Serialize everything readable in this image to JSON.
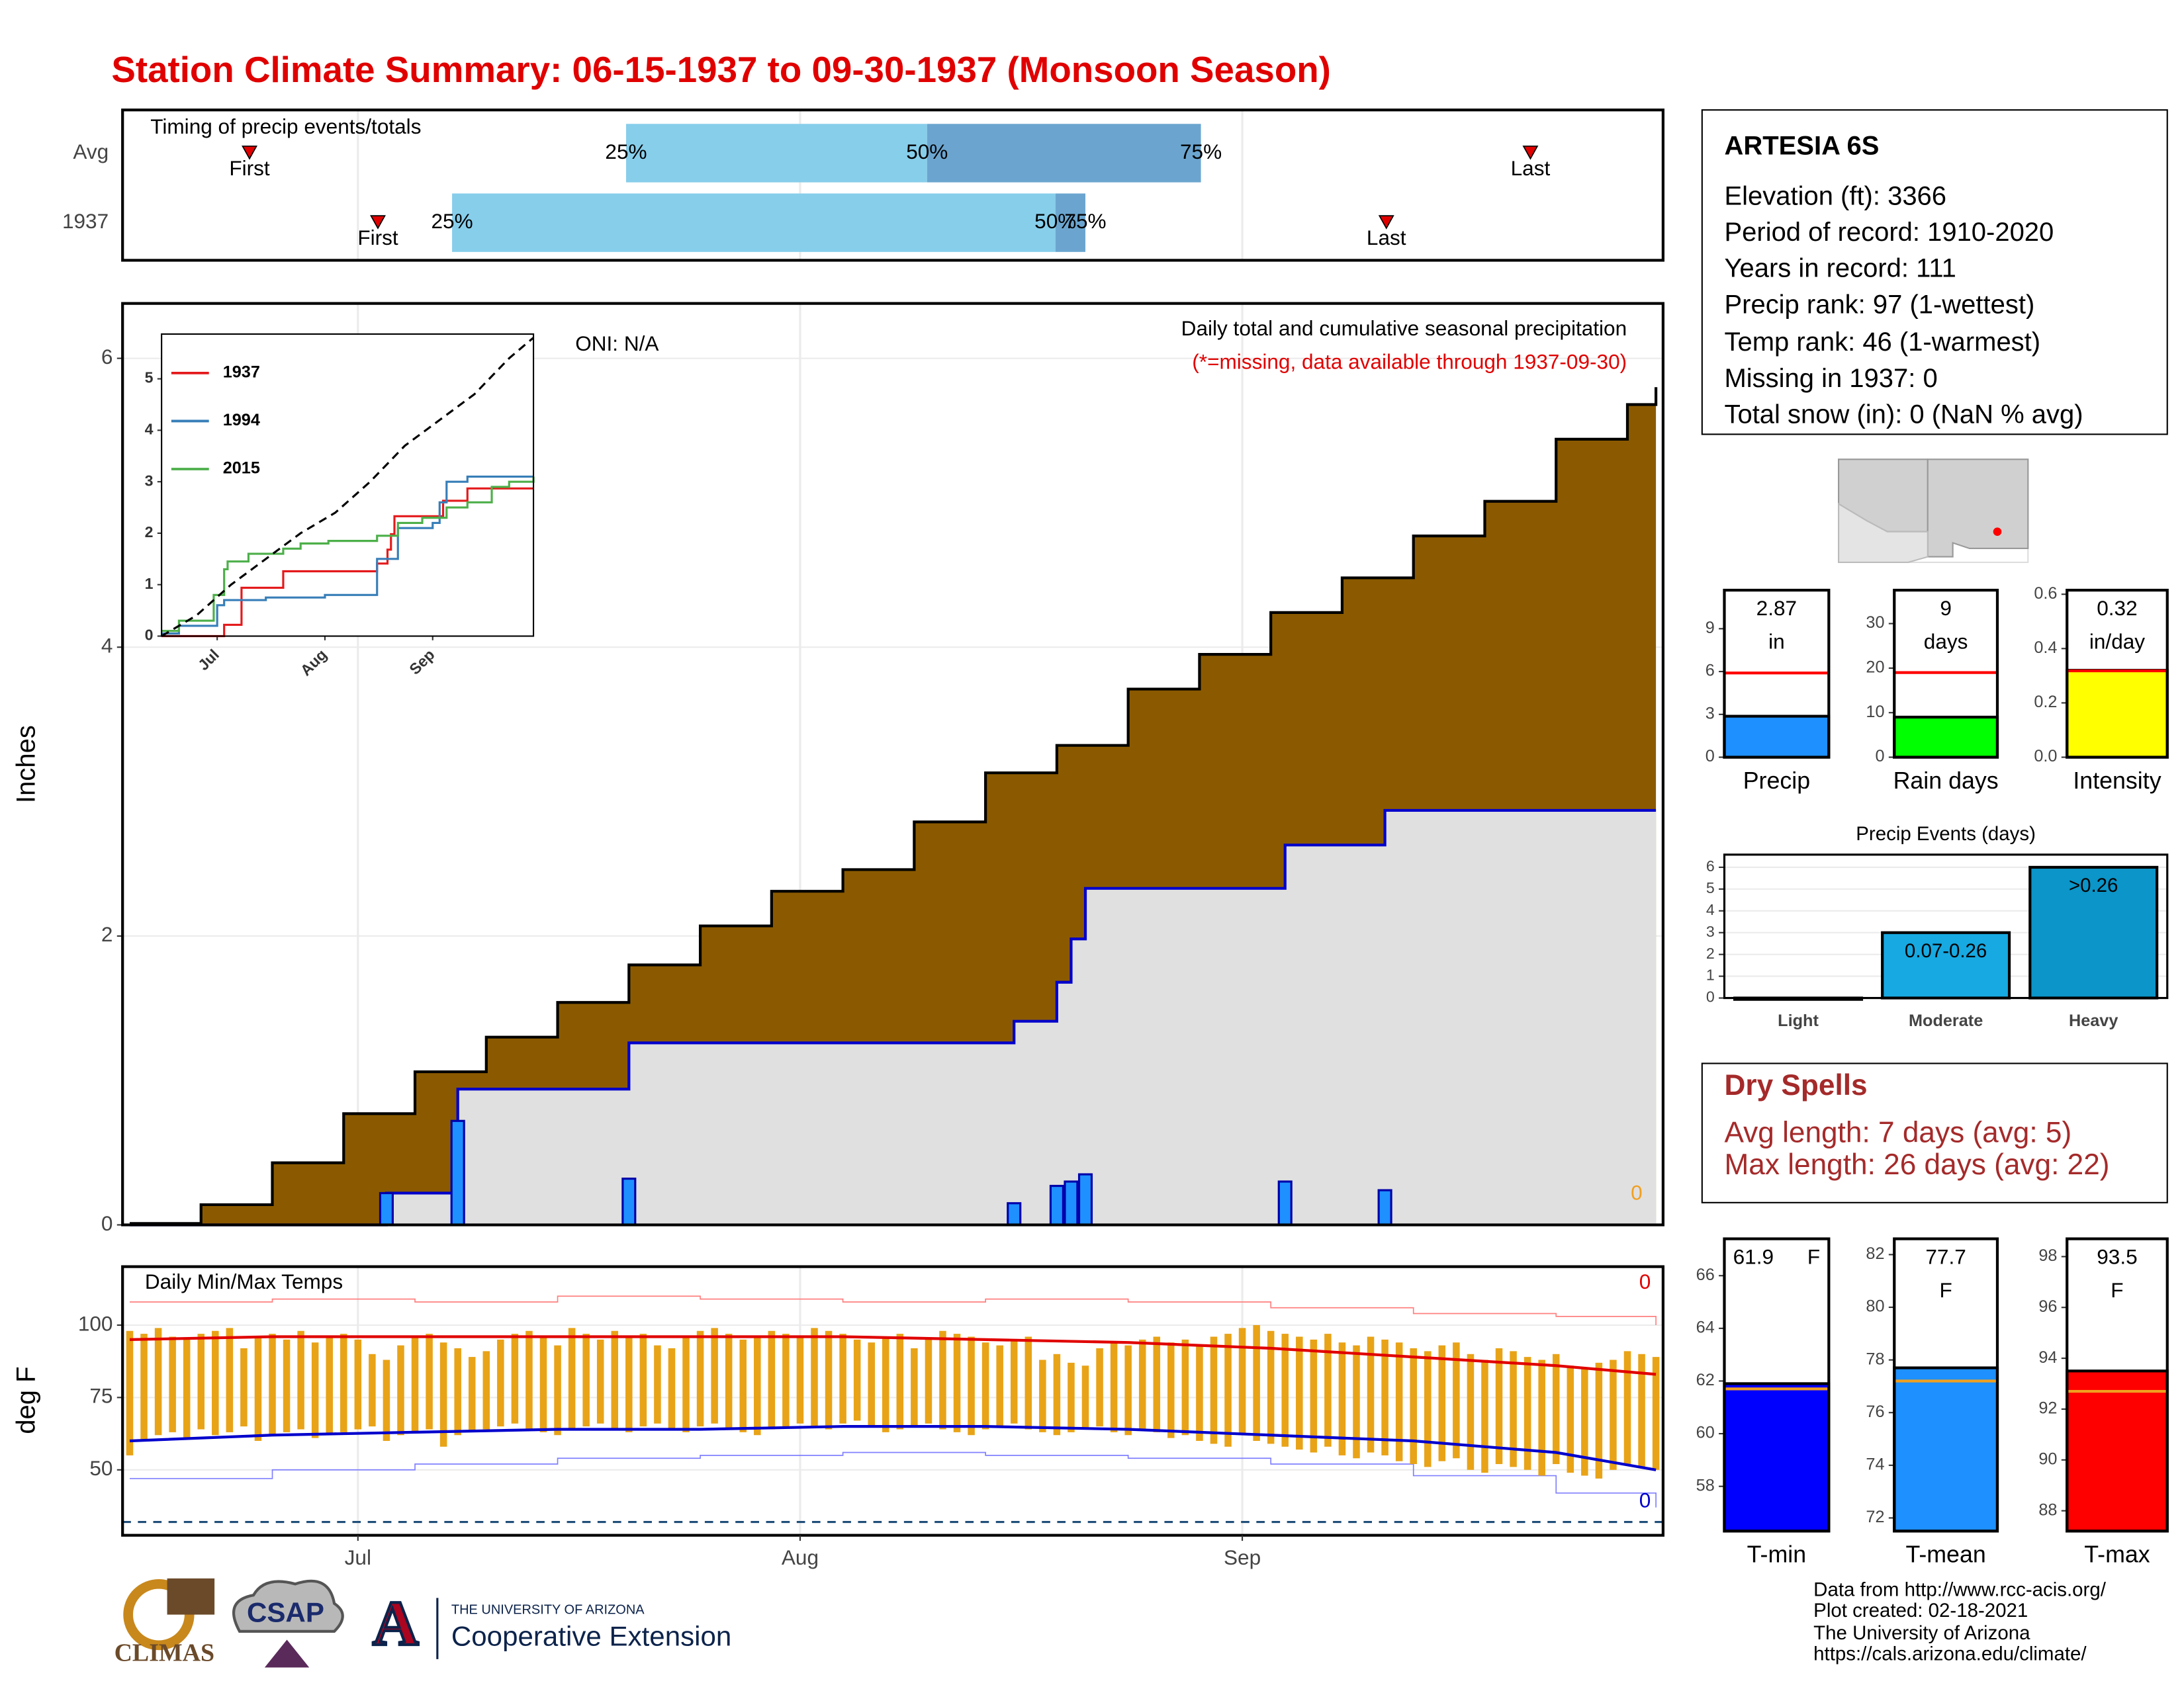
{
  "title": "Station Climate Summary: 06-15-1937 to 09-30-1937 (Monsoon Season)",
  "station": {
    "name": "ARTESIA 6S",
    "lines": [
      "Elevation (ft): 3366",
      "Period of record: 1910-2020",
      "Years in record: 111",
      "Precip rank: 97 (1-wettest)",
      "Temp rank: 46 (1-warmest)",
      "Missing in 1937: 0",
      "Total snow (in): 0 (NaN % avg)"
    ]
  },
  "dry_spells": {
    "title": "Dry Spells",
    "lines": [
      "Avg length: 7 days (avg: 5)",
      "Max length: 26 days (avg: 22)"
    ]
  },
  "logos": {
    "climas": "CLIMAS",
    "csap": "CSAP",
    "ua": "A",
    "ua_name": "THE UNIVERSITY OF ARIZONA",
    "extension": "Cooperative Extension"
  },
  "credits": [
    "Data from http://www.rcc-acis.org/",
    "Plot created: 02-18-2021",
    "The University of Arizona",
    "https://cals.arizona.edu/climate/"
  ],
  "chart_data": [
    {
      "type": "timing",
      "title": "Timing of precip events/totals",
      "categories": [
        "Avg",
        "1937"
      ],
      "first": [
        8.4,
        17.4
      ],
      "last": [
        98.2,
        88.1
      ],
      "first_label": "First",
      "last_label": "Last",
      "quartiles": [
        [
          34.8,
          55.9,
          75.1
        ],
        [
          22.6,
          64.9,
          67
        ]
      ],
      "quartile_labels": [
        "25%",
        "50%",
        "75%"
      ],
      "colors": [
        "#87ceeb",
        "#6ba5cf"
      ],
      "marker_color": "#e00000",
      "xlim": [
        -0.5,
        107.5
      ],
      "xticks": [
        16,
        47,
        78
      ],
      "grid": true
    },
    {
      "type": "cumulative",
      "title": "Daily total and cumulative seasonal precipitation",
      "subtitle": "(*=missing, data available through 1937-09-30)",
      "annotation": "ONI: N/A",
      "corner_value": 0,
      "y_label": "Inches",
      "xlim": [
        -0.5,
        107.5
      ],
      "xticks": [
        {
          "value": 16,
          "label": "Jul"
        },
        {
          "value": 47,
          "label": "Aug"
        },
        {
          "value": 78,
          "label": "Sep"
        }
      ],
      "ylim": [
        0,
        6.38
      ],
      "yticks": [
        0,
        2,
        4,
        6
      ],
      "grid": true,
      "series": [
        {
          "kind": "area-step",
          "color": "#8b5a00",
          "x": [
            0,
            5,
            10,
            15,
            20,
            25,
            30,
            35,
            40,
            45,
            50,
            55,
            60,
            65,
            70,
            75,
            80,
            85,
            90,
            95,
            100,
            105,
            107
          ],
          "values": [
            0.01,
            0.14,
            0.43,
            0.77,
            1.06,
            1.3,
            1.54,
            1.8,
            2.07,
            2.31,
            2.46,
            2.79,
            3.13,
            3.32,
            3.71,
            3.95,
            4.24,
            4.48,
            4.77,
            5.01,
            5.44,
            5.68,
            5.8
          ]
        },
        {
          "kind": "line-step",
          "color": "#0000cc",
          "fill": "#e0e0e0",
          "x": [
            0,
            18,
            23,
            35,
            62,
            65,
            66,
            67,
            81,
            88,
            107
          ],
          "values": [
            0,
            0.22,
            0.94,
            1.26,
            1.41,
            1.68,
            1.98,
            2.33,
            2.63,
            2.87,
            2.87
          ]
        },
        {
          "kind": "bar",
          "color": "#1e90ff",
          "x": [
            18,
            23,
            35,
            62,
            65,
            66,
            67,
            81,
            88
          ],
          "values": [
            0.22,
            0.72,
            0.32,
            0.15,
            0.27,
            0.3,
            0.35,
            0.3,
            0.24
          ]
        }
      ]
    },
    {
      "type": "line-step",
      "xlim": [
        0,
        107
      ],
      "ylim": [
        0,
        5.87
      ],
      "yticks": [
        0,
        1,
        2,
        3,
        4,
        5
      ],
      "xticks": [
        {
          "value": 16,
          "label": "Jul"
        },
        {
          "value": 47,
          "label": "Aug"
        },
        {
          "value": 78,
          "label": "Sep"
        }
      ],
      "legend": "top-left",
      "series": [
        {
          "name": "1937",
          "color": "#e41a1c",
          "x": [
            0,
            18,
            23,
            35,
            62,
            65,
            66,
            67,
            81,
            88,
            107
          ],
          "values": [
            0,
            0.22,
            0.94,
            1.26,
            1.41,
            1.68,
            1.98,
            2.33,
            2.63,
            2.87,
            2.87
          ]
        },
        {
          "name": "1994",
          "color": "#377eb8",
          "x": [
            0,
            5,
            16,
            18,
            30,
            47,
            62,
            68,
            78,
            80,
            82,
            88,
            107
          ],
          "values": [
            0.05,
            0.2,
            0.6,
            0.7,
            0.75,
            0.8,
            1.5,
            2.1,
            2.2,
            2.6,
            3.0,
            3.1,
            3.1
          ]
        },
        {
          "name": "2015",
          "color": "#4daf4a",
          "x": [
            0,
            5,
            15,
            18,
            19,
            25,
            35,
            40,
            48,
            62,
            68,
            75,
            82,
            88,
            95,
            100,
            107
          ],
          "values": [
            0.1,
            0.3,
            0.8,
            1.3,
            1.45,
            1.6,
            1.7,
            1.8,
            1.85,
            1.95,
            2.2,
            2.3,
            2.5,
            2.6,
            2.9,
            3.0,
            3.1
          ]
        },
        {
          "color": "#000000",
          "dash": true,
          "x": [
            0,
            10,
            20,
            30,
            40,
            50,
            60,
            70,
            80,
            90,
            100,
            107
          ],
          "values": [
            0,
            0.4,
            1.0,
            1.5,
            2.0,
            2.4,
            3.0,
            3.7,
            4.2,
            4.7,
            5.4,
            5.8
          ]
        }
      ]
    },
    {
      "type": "temps",
      "title": "Daily Min/Max Temps",
      "y_label": "deg F",
      "xlim": [
        -0.5,
        107.5
      ],
      "xticks": [
        {
          "value": 16,
          "label": "Jul"
        },
        {
          "value": 47,
          "label": "Aug"
        },
        {
          "value": 78,
          "label": "Sep"
        }
      ],
      "ylim": [
        27.4,
        120.2
      ],
      "yticks": [
        50,
        75,
        100
      ],
      "grid": true,
      "max_count": 0,
      "min_count": 0,
      "bars": {
        "color": "#e8a317",
        "high": [
          98,
          97,
          99,
          96,
          95,
          97,
          98,
          99,
          92,
          96,
          97,
          95,
          98,
          94,
          96,
          97,
          95,
          90,
          88,
          93,
          96,
          97,
          94,
          92,
          89,
          91,
          95,
          97,
          98,
          96,
          93,
          99,
          97,
          95,
          98,
          96,
          97,
          93,
          92,
          96,
          98,
          99,
          97,
          95,
          96,
          98,
          97,
          96,
          99,
          98,
          97,
          95,
          94,
          96,
          97,
          92,
          95,
          98,
          97,
          96,
          94,
          93,
          95,
          96,
          88,
          90,
          87,
          86,
          92,
          94,
          93,
          95,
          96,
          94,
          95,
          93,
          96,
          97,
          99,
          100,
          98,
          97,
          96,
          95,
          97,
          94,
          93,
          96,
          95,
          94,
          92,
          91,
          93,
          94,
          90,
          88,
          92,
          91,
          89,
          88,
          90,
          86,
          85,
          87,
          88,
          91,
          90,
          89
        ],
        "low": [
          55,
          60,
          62,
          63,
          61,
          64,
          62,
          63,
          65,
          60,
          62,
          63,
          64,
          61,
          62,
          63,
          64,
          65,
          60,
          62,
          63,
          64,
          58,
          62,
          63,
          64,
          65,
          66,
          64,
          63,
          62,
          64,
          65,
          66,
          64,
          63,
          65,
          66,
          64,
          63,
          65,
          66,
          64,
          63,
          62,
          64,
          65,
          66,
          65,
          64,
          66,
          67,
          65,
          63,
          64,
          65,
          66,
          64,
          63,
          62,
          64,
          65,
          66,
          64,
          63,
          62,
          63,
          64,
          65,
          63,
          62,
          64,
          63,
          61,
          62,
          60,
          59,
          58,
          62,
          60,
          59,
          58,
          57,
          56,
          58,
          55,
          54,
          56,
          55,
          53,
          52,
          51,
          53,
          54,
          50,
          49,
          52,
          51,
          50,
          48,
          52,
          49,
          48,
          47,
          50,
          52,
          51,
          50
        ]
      },
      "series": [
        {
          "color": "#e00000",
          "width": 2,
          "x": [
            0,
            10,
            20,
            30,
            40,
            50,
            60,
            70,
            80,
            90,
            100,
            107
          ],
          "values": [
            95,
            96,
            96,
            96,
            96,
            96,
            95,
            94,
            92,
            89,
            86,
            83
          ]
        },
        {
          "color": "#0000cc",
          "width": 2,
          "x": [
            0,
            10,
            20,
            30,
            40,
            50,
            60,
            70,
            80,
            90,
            100,
            107
          ],
          "values": [
            60,
            62,
            63,
            64,
            64,
            65,
            65,
            64,
            62,
            60,
            56,
            50
          ]
        },
        {
          "color": "#ff8080",
          "width": 0.8,
          "x": [
            0,
            10,
            20,
            30,
            40,
            50,
            60,
            70,
            80,
            90,
            100,
            107
          ],
          "values": [
            108,
            109,
            108,
            110,
            109,
            108,
            109,
            108,
            106,
            104,
            103,
            100
          ]
        },
        {
          "color": "#8080ff",
          "width": 0.8,
          "x": [
            0,
            10,
            20,
            30,
            40,
            50,
            60,
            70,
            80,
            90,
            100,
            107
          ],
          "values": [
            47,
            50,
            52,
            54,
            55,
            56,
            55,
            54,
            52,
            48,
            42,
            37
          ]
        }
      ],
      "freeze": {
        "value": 32,
        "color": "#1f4e79"
      }
    },
    {
      "type": "gauge",
      "category": "Precip",
      "value": 2.87,
      "value_label": "2.87 in",
      "average": 5.9,
      "color": "#1e90ff",
      "avg_color": "#ff0000",
      "ylim": [
        0,
        11.7
      ],
      "yticks": [
        0,
        3,
        6,
        9
      ]
    },
    {
      "type": "gauge",
      "category": "Rain days",
      "value": 9,
      "value_label": "9 days",
      "average": 19,
      "color": "#00ff00",
      "avg_color": "#ff0000",
      "ylim": [
        0,
        37.5
      ],
      "yticks": [
        0,
        10,
        20,
        30
      ]
    },
    {
      "type": "gauge",
      "category": "Intensity",
      "value": 0.32,
      "value_label": "0.32 in/day",
      "average": 0.318,
      "color": "#ffff00",
      "avg_color": "#ff0000",
      "ylim": [
        0,
        0.615
      ],
      "yticks": [
        {
          "value": 0,
          "label": "0.0"
        },
        0.2,
        0.4,
        0.6
      ]
    },
    {
      "type": "bar",
      "title": "Precip Events (days)",
      "categories": [
        "Light",
        "Moderate",
        "Heavy"
      ],
      "values": [
        0,
        3,
        6
      ],
      "range_labels": [
        null,
        "0.07-0.26",
        ">0.26"
      ],
      "colors": [
        "#17a9e1",
        "#17a9e1",
        "#0b95c8"
      ],
      "ylim": [
        0,
        6.58
      ],
      "yticks": [
        0,
        1,
        2,
        3,
        4,
        5,
        6
      ],
      "grid": true
    },
    {
      "type": "gauge",
      "category": "T-min",
      "value": 61.9,
      "value_label": "61.9 F",
      "average": 61.7,
      "color": "#0000ff",
      "avg_color": "#f0a020",
      "ylim": [
        56.3,
        67.4
      ],
      "yticks": [
        58,
        60,
        62,
        64,
        66
      ]
    },
    {
      "type": "gauge",
      "category": "T-mean",
      "value": 77.7,
      "value_label": "77.7 F",
      "average": 77.2,
      "color": "#1e90ff",
      "avg_color": "#f0a020",
      "ylim": [
        71.5,
        82.6
      ],
      "yticks": [
        72,
        74,
        76,
        78,
        80,
        82
      ]
    },
    {
      "type": "gauge",
      "category": "T-max",
      "value": 93.5,
      "value_label": "93.5 F",
      "average": 92.7,
      "color": "#ff0000",
      "avg_color": "#f0a020",
      "ylim": [
        87.2,
        98.7
      ],
      "yticks": [
        88,
        90,
        92,
        94,
        96,
        98
      ]
    }
  ]
}
